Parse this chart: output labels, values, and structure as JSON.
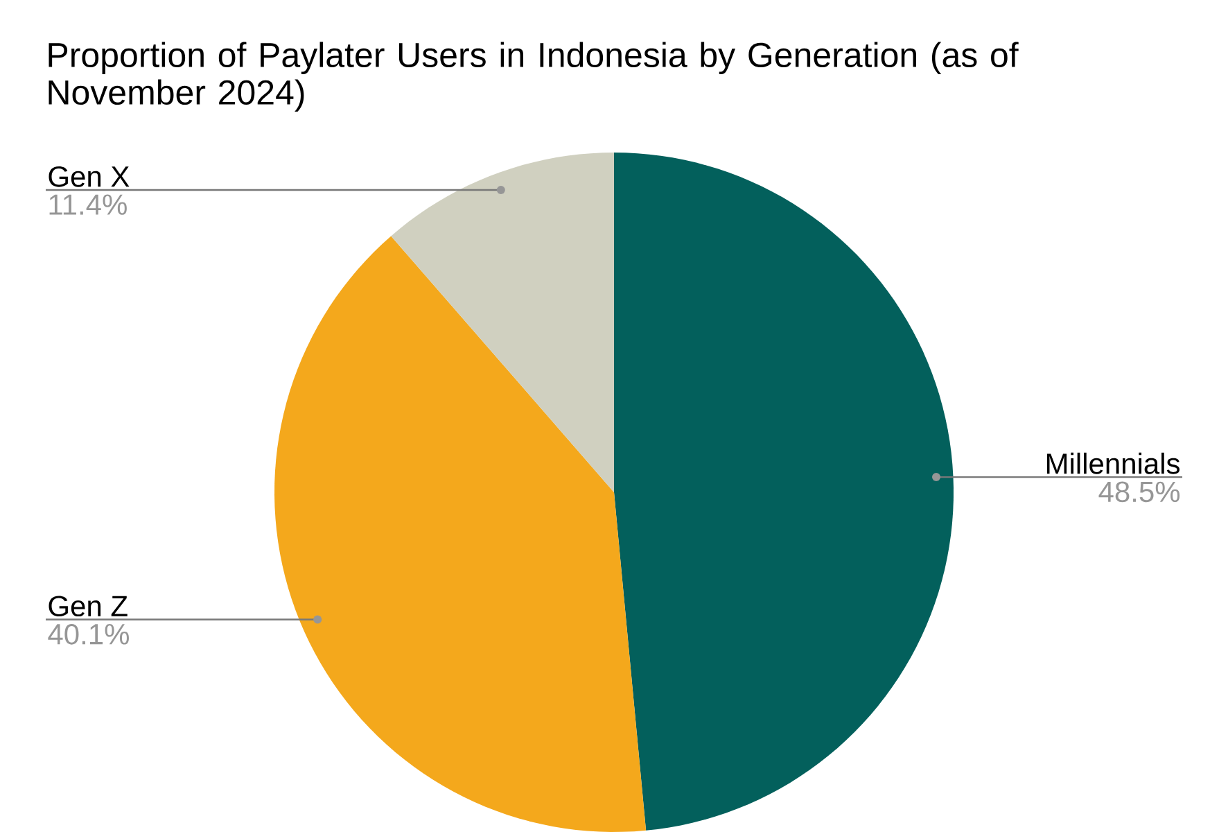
{
  "chart_data": {
    "type": "pie",
    "title": "Proportion of Paylater Users in Indonesia by Generation (as of November 2024)",
    "categories": [
      "Millennials",
      "Gen Z",
      "Gen X"
    ],
    "values": [
      48.5,
      40.1,
      11.4
    ],
    "value_labels": [
      "48.5%",
      "40.1%",
      "11.4%"
    ],
    "colors": [
      "#03605c",
      "#f4a81c",
      "#d0d0c0"
    ]
  }
}
